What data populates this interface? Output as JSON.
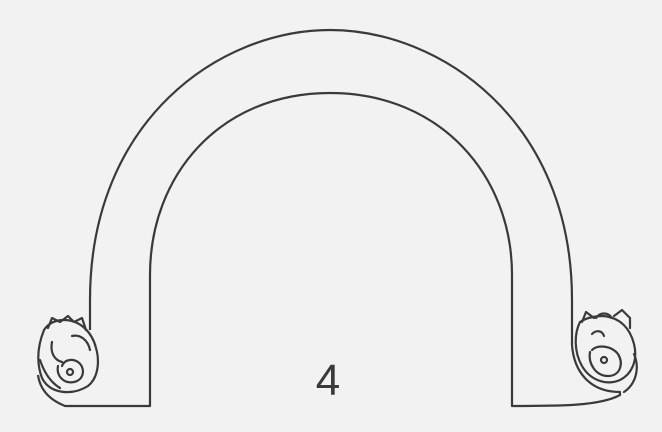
{
  "figure": {
    "number_label": "4",
    "line_color": "#3a3a3a",
    "background_color": "#f2f2f2"
  }
}
